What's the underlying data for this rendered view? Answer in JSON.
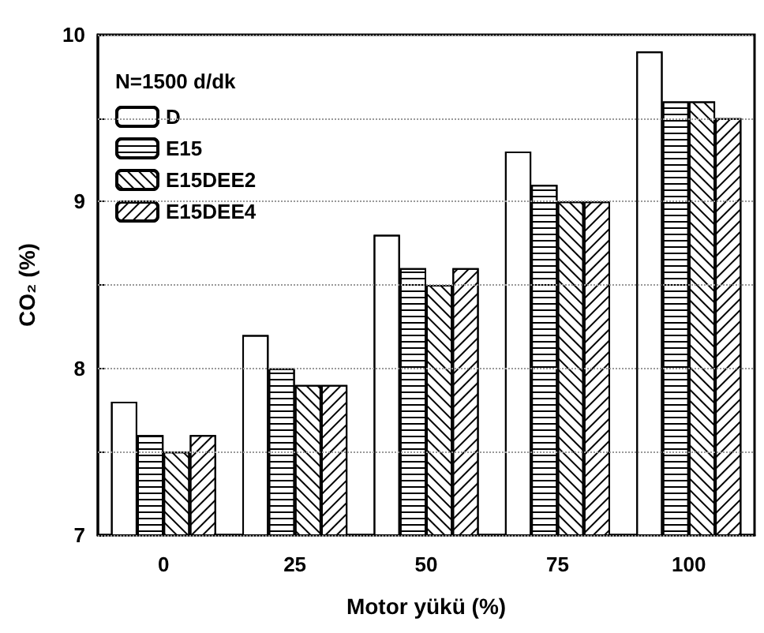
{
  "chart_data": {
    "type": "bar",
    "xlabel": "Motor yükü (%)",
    "ylabel": "CO₂ (%)",
    "legend_title": "N=1500 d/dk",
    "categories": [
      "0",
      "25",
      "50",
      "75",
      "100"
    ],
    "series": [
      {
        "name": "D",
        "color": "#ffffff",
        "values": [
          7.8,
          8.2,
          8.8,
          9.3,
          9.9
        ]
      },
      {
        "name": "E15",
        "color": "#ffffff",
        "values": [
          7.6,
          8.0,
          8.6,
          9.1,
          9.6
        ]
      },
      {
        "name": "E15DEE2",
        "color": "#ffffff",
        "values": [
          7.5,
          7.9,
          8.5,
          9.0,
          9.6
        ]
      },
      {
        "name": "E15DEE4",
        "color": "#ffffff",
        "values": [
          7.6,
          7.9,
          8.6,
          9.0,
          9.5
        ]
      }
    ],
    "ylim": [
      7,
      10
    ],
    "yticks": [
      7,
      {
        "value": 7.5,
        "label": null
      },
      8,
      {
        "value": 8.5,
        "label": null
      },
      9,
      {
        "value": 9.5,
        "label": null
      },
      10
    ],
    "grid": "y",
    "legend": "top left"
  }
}
